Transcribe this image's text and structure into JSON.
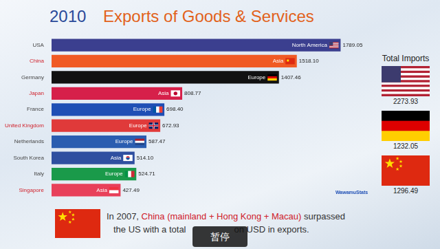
{
  "header": {
    "year": "2010",
    "title": "Exports of Goods & Services"
  },
  "chart_data": {
    "type": "bar",
    "orientation": "horizontal",
    "categories": [
      "USA",
      "China",
      "Germany",
      "Japan",
      "France",
      "United Kingdom",
      "Netherlands",
      "South Korea",
      "Italy",
      "Singapore"
    ],
    "values": [
      1789.05,
      1518.1,
      1407.46,
      808.77,
      698.4,
      672.93,
      587.47,
      514.1,
      524.71,
      427.49
    ],
    "value_labels": [
      "1789.05",
      "1518.10",
      "1407.46",
      "808.77",
      "698.40",
      "672.93",
      "587.47",
      "514.10",
      "524.71",
      "427.49"
    ],
    "regions": [
      "North America",
      "Asia",
      "Europe",
      "Asia",
      "Europe",
      "Europe",
      "Europe",
      "Asia",
      "Europe",
      "Asia"
    ],
    "colors": [
      "#3b3f8f",
      "#f05a24",
      "#111111",
      "#d6204a",
      "#1f4fb5",
      "#e03a3a",
      "#2a5db0",
      "#2f4fa0",
      "#1a9a4a",
      "#e8405a"
    ],
    "xlim": [
      0,
      1800
    ],
    "data_labels": true,
    "tick_labels": "y",
    "grid": false
  },
  "imports_panel": {
    "title": "Total Imports",
    "values": [
      "2273.93",
      "1232.05",
      "1296.49"
    ]
  },
  "watermark": "WawamuStats",
  "annotation": {
    "prefix": "In 2007, ",
    "highlight": "China (mainland + Hong Kong + Macau)",
    "suffix": " surpassed",
    "line2_start": "the US with a total",
    "line2_end": "on USD in exports."
  },
  "overlay": "暂停"
}
